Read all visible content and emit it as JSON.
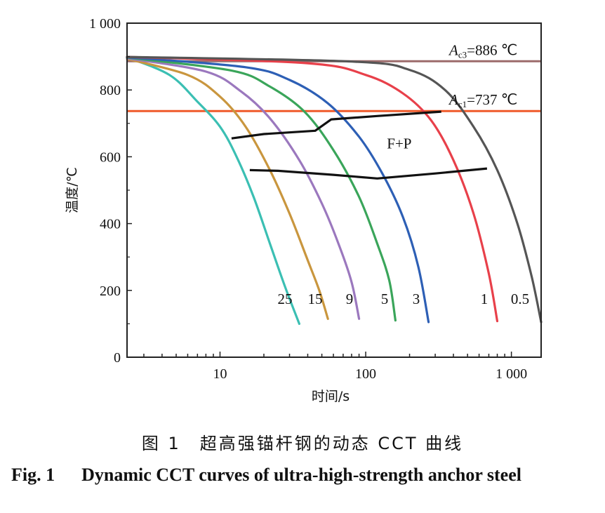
{
  "chart_data": {
    "type": "line",
    "xscale": "log",
    "xlabel": "时间/s",
    "ylabel": "温度/℃",
    "xlim": [
      2.3,
      1600
    ],
    "ylim": [
      0,
      1000
    ],
    "xticks": [
      {
        "value": 10,
        "label": "10"
      },
      {
        "value": 100,
        "label": "100"
      },
      {
        "value": 1000,
        "label": "1 000"
      }
    ],
    "yticks": [
      {
        "value": 0,
        "label": "0"
      },
      {
        "value": 200,
        "label": "200"
      },
      {
        "value": 400,
        "label": "400"
      },
      {
        "value": 600,
        "label": "600"
      },
      {
        "value": 800,
        "label": "800"
      },
      {
        "value": 1000,
        "label": "1 000"
      }
    ],
    "reference_lines": [
      {
        "name": "Ac3",
        "value": 886,
        "color": "#9c6b6b",
        "label_main": "A",
        "label_sub": "c3",
        "label_rest": "=886 ℃"
      },
      {
        "name": "Ac1",
        "value": 737,
        "color": "#ef5a2a",
        "label_main": "A",
        "label_sub": "c1",
        "label_rest": "=737 ℃"
      }
    ],
    "series": [
      {
        "name": "25",
        "color": "#3bbfb3",
        "label": "25",
        "points": [
          [
            2.3,
            898
          ],
          [
            4.5,
            845
          ],
          [
            7,
            765
          ],
          [
            10,
            690
          ],
          [
            13,
            600
          ],
          [
            17,
            480
          ],
          [
            22,
            340
          ],
          [
            28,
            210
          ],
          [
            35,
            100
          ]
        ]
      },
      {
        "name": "15",
        "color": "#c9963e",
        "label": "15",
        "points": [
          [
            2.3,
            893
          ],
          [
            6,
            845
          ],
          [
            10,
            780
          ],
          [
            15,
            690
          ],
          [
            22,
            560
          ],
          [
            30,
            430
          ],
          [
            40,
            290
          ],
          [
            48,
            200
          ],
          [
            55,
            115
          ]
        ]
      },
      {
        "name": "9",
        "color": "#9b78be",
        "label": "9",
        "points": [
          [
            2.3,
            895
          ],
          [
            8,
            855
          ],
          [
            14,
            795
          ],
          [
            22,
            715
          ],
          [
            35,
            590
          ],
          [
            50,
            460
          ],
          [
            65,
            340
          ],
          [
            80,
            225
          ],
          [
            90,
            115
          ]
        ]
      },
      {
        "name": "5",
        "color": "#3aa55a",
        "label": "5",
        "points": [
          [
            2.3,
            897
          ],
          [
            12,
            858
          ],
          [
            22,
            810
          ],
          [
            38,
            735
          ],
          [
            60,
            620
          ],
          [
            90,
            480
          ],
          [
            120,
            340
          ],
          [
            145,
            230
          ],
          [
            160,
            110
          ]
        ]
      },
      {
        "name": "3",
        "color": "#2d5fb5",
        "label": "3",
        "points": [
          [
            2.3,
            898
          ],
          [
            15,
            868
          ],
          [
            30,
            830
          ],
          [
            55,
            760
          ],
          [
            90,
            660
          ],
          [
            130,
            550
          ],
          [
            180,
            420
          ],
          [
            230,
            270
          ],
          [
            270,
            105
          ]
        ]
      },
      {
        "name": "1",
        "color": "#e8404a",
        "label": "1",
        "points": [
          [
            2.3,
            899
          ],
          [
            40,
            880
          ],
          [
            100,
            845
          ],
          [
            180,
            790
          ],
          [
            280,
            710
          ],
          [
            400,
            590
          ],
          [
            550,
            430
          ],
          [
            700,
            250
          ],
          [
            800,
            108
          ]
        ]
      },
      {
        "name": "0.5",
        "color": "#555555",
        "label": "0.5",
        "points": [
          [
            2.3,
            899
          ],
          [
            80,
            885
          ],
          [
            200,
            860
          ],
          [
            350,
            800
          ],
          [
            550,
            690
          ],
          [
            800,
            560
          ],
          [
            1100,
            400
          ],
          [
            1380,
            240
          ],
          [
            1600,
            105
          ]
        ]
      }
    ],
    "boundaries": [
      {
        "name": "F+P start",
        "color": "#111111",
        "points": [
          [
            12,
            655
          ],
          [
            20,
            668
          ],
          [
            45,
            678
          ],
          [
            58,
            712
          ],
          [
            120,
            722
          ],
          [
            330,
            735
          ]
        ]
      },
      {
        "name": "F+P finish",
        "color": "#111111",
        "points": [
          [
            16,
            560
          ],
          [
            25,
            558
          ],
          [
            60,
            546
          ],
          [
            120,
            535
          ],
          [
            300,
            550
          ],
          [
            680,
            565
          ]
        ]
      }
    ],
    "annotations": [
      {
        "text": "F+P",
        "x": 170,
        "y": 625
      }
    ]
  },
  "caption": {
    "cn": "图 1　超高强锚杆钢的动态 CCT 曲线",
    "en_number": "Fig. 1",
    "en_title": "Dynamic CCT curves of ultra-high-strength anchor steel"
  }
}
